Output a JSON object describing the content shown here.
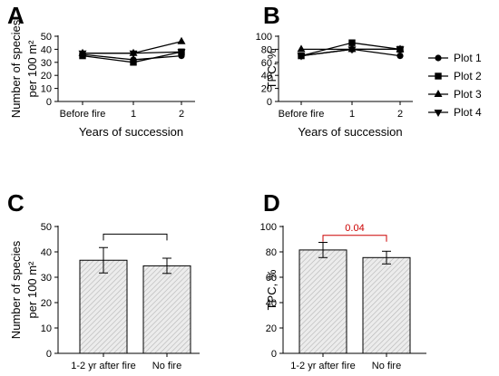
{
  "chart_data": [
    {
      "panel": "A",
      "type": "line",
      "categories": [
        "Before fire",
        "1",
        "2"
      ],
      "xlabel": "Years of succession",
      "ylabel_lines": [
        "Number of species",
        "per 100 m²"
      ],
      "ylim": [
        0,
        50
      ],
      "yticks": [
        0,
        10,
        20,
        30,
        40,
        50
      ],
      "legend_placement": "right",
      "series": [
        {
          "name": "Plot 1",
          "marker": "circle",
          "values": [
            36,
            32,
            35
          ]
        },
        {
          "name": "Plot 2",
          "marker": "square",
          "values": [
            35,
            30,
            38
          ]
        },
        {
          "name": "Plot 3",
          "marker": "triangle-up",
          "values": [
            37,
            37,
            46
          ]
        },
        {
          "name": "Plot 4",
          "marker": "triangle-down",
          "values": [
            37,
            37,
            38
          ]
        }
      ]
    },
    {
      "panel": "B",
      "type": "line",
      "categories": [
        "Before fire",
        "1",
        "2"
      ],
      "xlabel": "Years of succession",
      "ylabel_lines": [
        "TPC, %"
      ],
      "ylim": [
        0,
        100
      ],
      "yticks": [
        0,
        20,
        40,
        60,
        80,
        100
      ],
      "series": [
        {
          "name": "Plot 1",
          "marker": "circle",
          "values": [
            70,
            80,
            70
          ]
        },
        {
          "name": "Plot 2",
          "marker": "square",
          "values": [
            70,
            90,
            80
          ]
        },
        {
          "name": "Plot 3",
          "marker": "triangle-up",
          "values": [
            80,
            80,
            80
          ]
        },
        {
          "name": "Plot 4",
          "marker": "triangle-down",
          "values": [
            70,
            80,
            80
          ]
        }
      ]
    },
    {
      "panel": "C",
      "type": "bar",
      "categories": [
        "1-2 yr after fire",
        "No fire"
      ],
      "values": [
        36.7,
        34.5
      ],
      "errors": [
        5.0,
        3.0
      ],
      "ylabel_lines": [
        "Number of species",
        "per 100 m²"
      ],
      "ylim": [
        0,
        50
      ],
      "yticks": [
        0,
        10,
        20,
        30,
        40,
        50
      ],
      "comparison": {
        "label": "",
        "level": 47
      }
    },
    {
      "panel": "D",
      "type": "bar",
      "categories": [
        "1-2 yr after fire",
        "No fire"
      ],
      "values": [
        81.5,
        75.5
      ],
      "errors": [
        6.0,
        5.0
      ],
      "ylabel_lines": [
        "TPC, %"
      ],
      "ylim": [
        0,
        100
      ],
      "yticks": [
        0,
        20,
        40,
        60,
        80,
        100
      ],
      "comparison": {
        "label": "0.04",
        "level": 93,
        "color": "#cc0000"
      }
    }
  ]
}
